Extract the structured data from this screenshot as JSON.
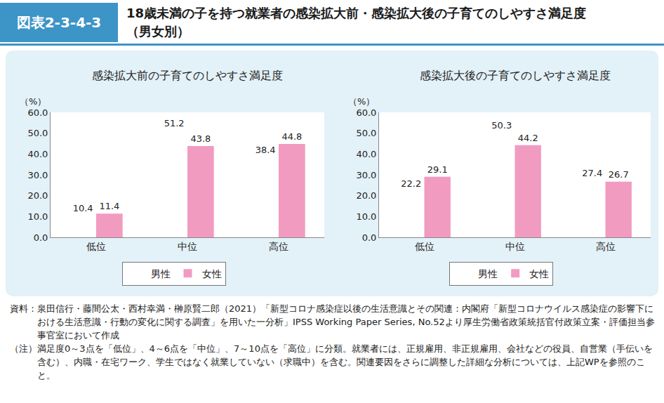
{
  "header": {
    "label": "図表2-3-4-3",
    "title": [
      "18歳未満の子を持つ就業者の感染拡大前・感染拡大後の子育てのしやすさ満足度",
      "（男女別）"
    ]
  },
  "chart_data": [
    {
      "type": "bar",
      "title": "感染拡大前の子育てのしやすさ満足度",
      "y_label": "（%）",
      "categories": [
        "低位",
        "中位",
        "高位"
      ],
      "series": [
        {
          "name": "男性",
          "color": "#7ccdee",
          "values": [
            10.4,
            51.2,
            38.4
          ]
        },
        {
          "name": "女性",
          "color": "#f29bc1",
          "values": [
            11.4,
            43.8,
            44.8
          ]
        }
      ],
      "ylim": [
        0,
        60
      ],
      "yticks": [
        {
          "value": 0,
          "label": "0.0"
        },
        {
          "value": 10,
          "label": "10.0"
        },
        {
          "value": 20,
          "label": "20.0"
        },
        {
          "value": 30,
          "label": "30.0"
        },
        {
          "value": 40,
          "label": "40.0"
        },
        {
          "value": 50,
          "label": "50.0"
        },
        {
          "value": 60,
          "label": "60.0"
        }
      ],
      "grid": false,
      "legend": "bottom",
      "data_labels": true
    },
    {
      "type": "bar",
      "title": "感染拡大後の子育てのしやすさ満足度",
      "y_label": "（%）",
      "categories": [
        "低位",
        "中位",
        "高位"
      ],
      "series": [
        {
          "name": "男性",
          "color": "#7ccdee",
          "values": [
            22.2,
            50.3,
            27.4
          ]
        },
        {
          "name": "女性",
          "color": "#f29bc1",
          "values": [
            29.1,
            44.2,
            26.7
          ]
        }
      ],
      "ylim": [
        0,
        60
      ],
      "yticks": [
        {
          "value": 0,
          "label": "0.0"
        },
        {
          "value": 10,
          "label": "10.0"
        },
        {
          "value": 20,
          "label": "20.0"
        },
        {
          "value": 30,
          "label": "30.0"
        },
        {
          "value": 40,
          "label": "40.0"
        },
        {
          "value": 50,
          "label": "50.0"
        },
        {
          "value": 60,
          "label": "60.0"
        }
      ],
      "grid": false,
      "legend": "bottom",
      "data_labels": true
    }
  ],
  "notes": [
    {
      "label": "資料：",
      "text": "泉田信行・藤間公太・西村幸満・榊原賢二郎（2021）「新型コロナ感染症以後の生活意識とその関連：内閣府「新型コロナウイルス感染症の影響下における生活意識・行動の変化に関する調査」を用いた一分析」IPSS Working Paper Series, No.52より厚生労働省政策統括官付政策立案・評価担当参事官室において作成"
    },
    {
      "label": "（注）",
      "text": "満足度0～3点を「低位」、4～6点を「中位」、7～10点を「高位」に分類。就業者には、正規雇用、非正規雇用、会社などの役員、自営業（手伝いを含む）、内職・在宅ワーク、学生ではなく就業していない（求職中）を含む。関連要因をさらに調整した詳細な分析については、上記WPを参照のこと。"
    }
  ]
}
